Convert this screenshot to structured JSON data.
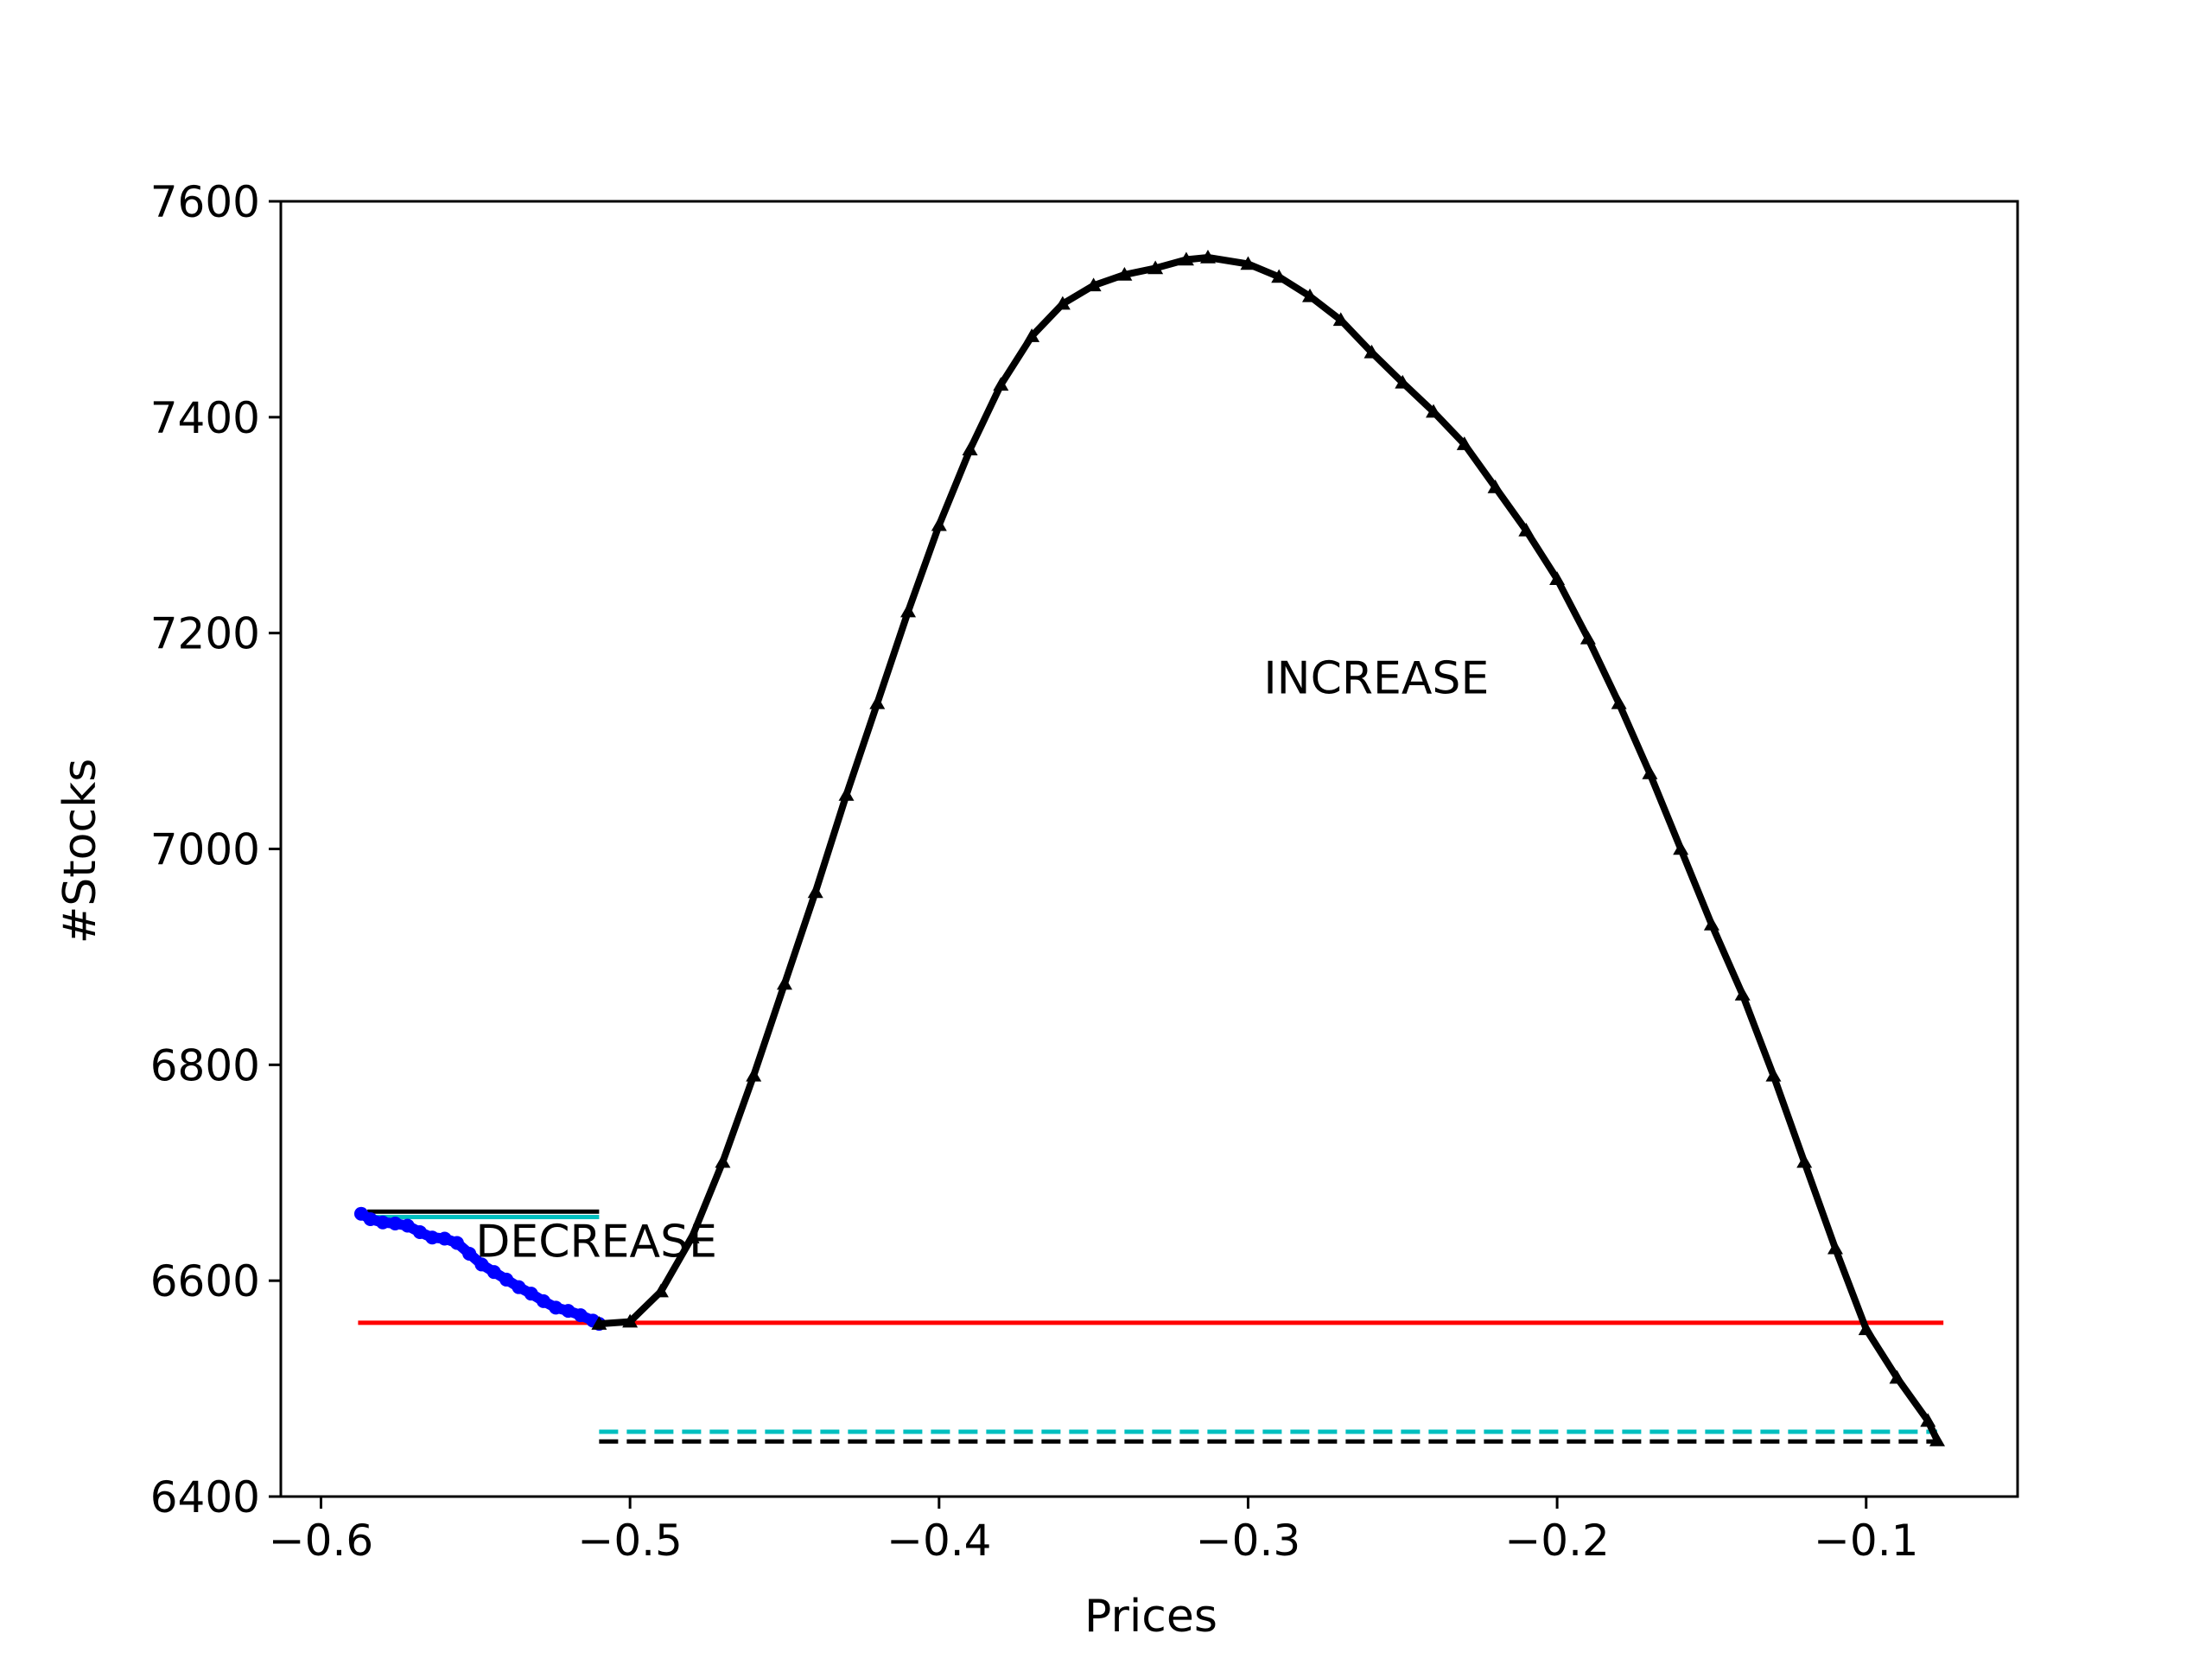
{
  "chart_data": {
    "type": "line",
    "title": "",
    "xlabel": "Prices",
    "ylabel": "#Stocks",
    "xlim": [
      -0.613,
      -0.051
    ],
    "ylim": [
      6400,
      7600
    ],
    "xticks": [
      -0.6,
      -0.5,
      -0.4,
      -0.3,
      -0.2,
      -0.1
    ],
    "xtick_labels": [
      "−0.6",
      "−0.5",
      "−0.4",
      "−0.3",
      "−0.2",
      "−0.1"
    ],
    "yticks": [
      6400,
      6600,
      6800,
      7000,
      7200,
      7400,
      7600
    ],
    "ytick_labels": [
      "6400",
      "6600",
      "6800",
      "7000",
      "7200",
      "7400",
      "7600"
    ],
    "grid": false,
    "annotations": [
      {
        "text": "DECREASE",
        "x": -0.55,
        "y": 6622
      },
      {
        "text": "INCREASE",
        "x": -0.295,
        "y": 7144
      }
    ],
    "series": [
      {
        "style": "blue-dots",
        "color": "#0000ff",
        "x": [
          -0.587,
          -0.584,
          -0.58,
          -0.576,
          -0.572,
          -0.568,
          -0.564,
          -0.56,
          -0.556,
          -0.552,
          -0.548,
          -0.544,
          -0.54,
          -0.536,
          -0.532,
          -0.528,
          -0.524,
          -0.52,
          -0.516,
          -0.512,
          -0.51
        ],
        "y": [
          6662,
          6657,
          6654,
          6653,
          6651,
          6645,
          6640,
          6639,
          6635,
          6625,
          6615,
          6608,
          6601,
          6594,
          6588,
          6581,
          6575,
          6572,
          6568,
          6563,
          6560
        ]
      },
      {
        "style": "black-triangles",
        "color": "#000000",
        "x": [
          -0.51,
          -0.5,
          -0.49,
          -0.48,
          -0.47,
          -0.46,
          -0.45,
          -0.44,
          -0.43,
          -0.42,
          -0.41,
          -0.4,
          -0.39,
          -0.38,
          -0.37,
          -0.36,
          -0.35,
          -0.34,
          -0.33,
          -0.32,
          -0.313,
          -0.3,
          -0.29,
          -0.28,
          -0.27,
          -0.26,
          -0.25,
          -0.24,
          -0.23,
          -0.22,
          -0.21,
          -0.2,
          -0.19,
          -0.18,
          -0.17,
          -0.16,
          -0.15,
          -0.14,
          -0.13,
          -0.12,
          -0.11,
          -0.1,
          -0.09,
          -0.08,
          -0.077
        ],
        "y": [
          6560,
          6562,
          6590,
          6640,
          6710,
          6790,
          6875,
          6960,
          7050,
          7135,
          7220,
          7300,
          7370,
          7430,
          7475,
          7505,
          7522,
          7532,
          7538,
          7546,
          7548,
          7542,
          7530,
          7512,
          7490,
          7460,
          7432,
          7405,
          7375,
          7335,
          7295,
          7250,
          7195,
          7135,
          7070,
          7000,
          6930,
          6865,
          6790,
          6710,
          6630,
          6555,
          6510,
          6470,
          6452
        ]
      }
    ],
    "reference_lines": [
      {
        "style": "solid",
        "color": "#000000",
        "y": 6664,
        "x": [
          -0.585,
          -0.51
        ]
      },
      {
        "style": "solid",
        "color": "#00bfbf",
        "y": 6659,
        "x": [
          -0.585,
          -0.51
        ]
      },
      {
        "style": "solid",
        "color": "#ff0000",
        "y": 6561,
        "x": [
          -0.588,
          -0.075
        ]
      },
      {
        "style": "dashed",
        "color": "#00bfbf",
        "y": 6460,
        "x": [
          -0.51,
          -0.077
        ]
      },
      {
        "style": "dashed",
        "color": "#000000",
        "y": 6451,
        "x": [
          -0.51,
          -0.077
        ]
      }
    ]
  }
}
